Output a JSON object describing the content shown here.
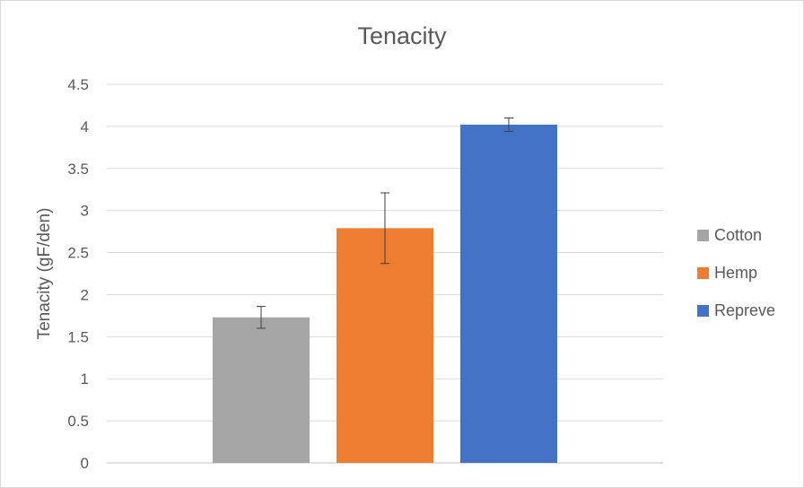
{
  "chart_data": {
    "type": "bar",
    "title": "Tenacity",
    "ylabel": "Tenacity (gF/den)",
    "xlabel": "",
    "ylim": [
      0,
      4.5
    ],
    "yticks": [
      "0",
      "0.5",
      "1",
      "1.5",
      "2",
      "2.5",
      "3",
      "3.5",
      "4",
      "4.5"
    ],
    "grid": true,
    "legend_position": "right",
    "series": [
      {
        "name": "Cotton",
        "value": 1.73,
        "error": 0.13,
        "color": "#a5a5a5"
      },
      {
        "name": "Hemp",
        "value": 2.79,
        "error": 0.42,
        "color": "#ed7d31"
      },
      {
        "name": "Repreve",
        "value": 4.02,
        "error": 0.08,
        "color": "#4472c4"
      }
    ]
  }
}
